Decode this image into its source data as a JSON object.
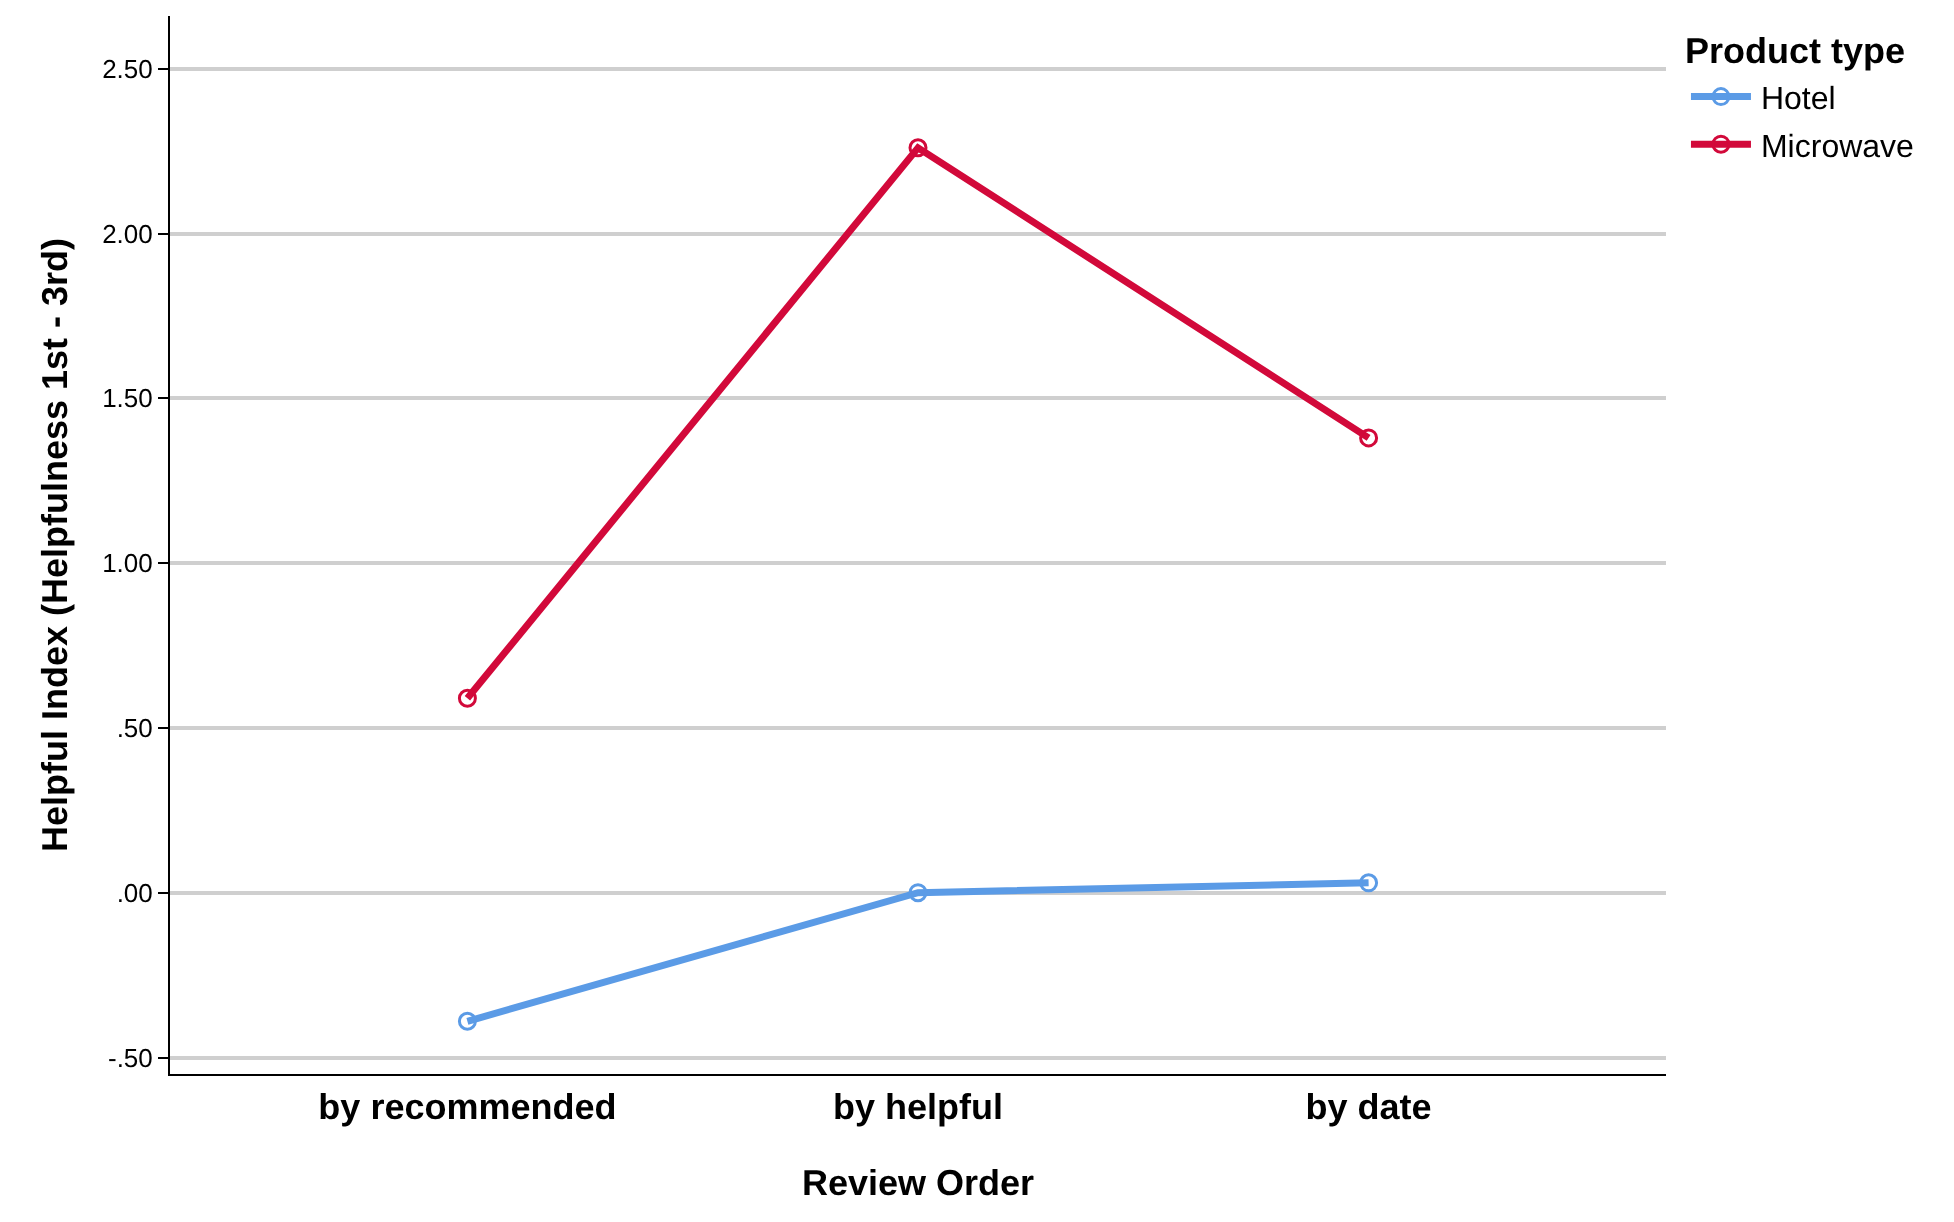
{
  "chart_data": {
    "type": "line",
    "xlabel": "Review Order",
    "ylabel": "Helpful Index (Helpfulness 1st - 3rd)",
    "legend_title": "Product type",
    "categories": [
      "by recommended",
      "by helpful",
      "by date"
    ],
    "series": [
      {
        "name": "Hotel",
        "color": "#5b9be6",
        "values": [
          -0.39,
          0.0,
          0.03
        ]
      },
      {
        "name": "Microwave",
        "color": "#d2093a",
        "values": [
          0.59,
          2.26,
          1.38
        ]
      }
    ],
    "ylim": [
      -0.55,
      2.66
    ],
    "yticks": [
      {
        "value": -0.5,
        "label": "-.50"
      },
      {
        "value": 0,
        "label": ".00"
      },
      {
        "value": 0.5,
        "label": ".50"
      },
      {
        "value": 1,
        "label": "1.00"
      },
      {
        "value": 1.5,
        "label": "1.50"
      },
      {
        "value": 2,
        "label": "2.00"
      },
      {
        "value": 2.5,
        "label": "2.50"
      }
    ],
    "grid": "y",
    "legend": "top right",
    "marker": "circle",
    "line_style": "solid"
  }
}
